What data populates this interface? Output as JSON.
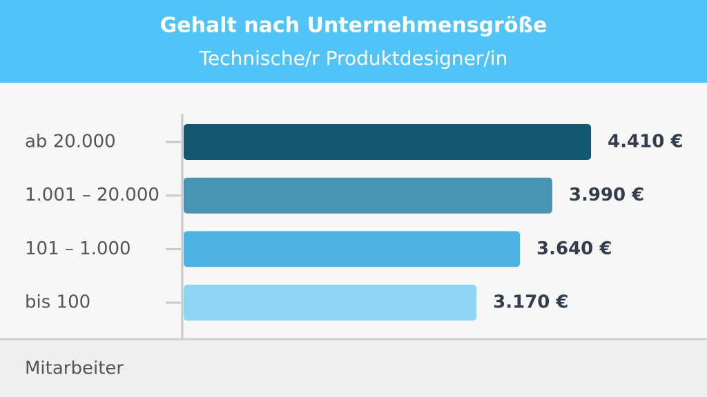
{
  "chart_data": {
    "type": "hbar",
    "title": "Gehalt nach Unternehmensgröße",
    "subtitle": "Technische/r Produktdesigner/in",
    "y_label": "Mitarbeiter",
    "categories": [
      "ab 20.000",
      "1.001 – 20.000",
      "101 – 1.000",
      "bis 100"
    ],
    "values": [
      4410,
      3990,
      3640,
      3170
    ],
    "value_labels": [
      "4.410 €",
      "3.990 €",
      "3.640 €",
      "3.170 €"
    ],
    "colors": [
      "#155673",
      "#4794b5",
      "#4eb3e3",
      "#8dd4f5"
    ],
    "xlim": [
      0,
      5000
    ]
  }
}
